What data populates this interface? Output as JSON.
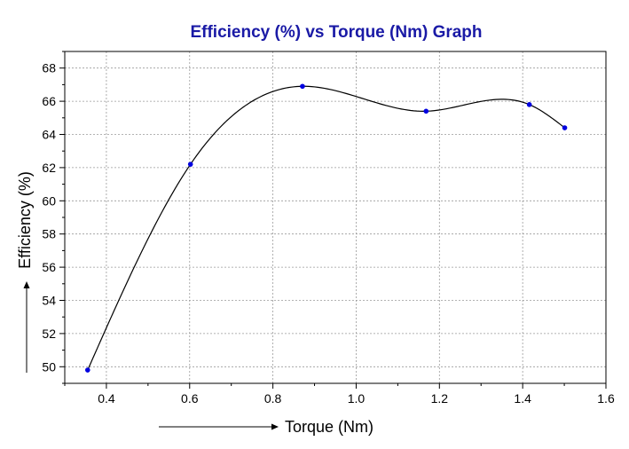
{
  "chart_data": {
    "type": "line",
    "title": "Efficiency (%) vs Torque (Nm) Graph",
    "xlabel": "Torque (Nm)",
    "ylabel": "Efficiency (%)",
    "xlim": [
      0.3,
      1.6
    ],
    "ylim": [
      49,
      69
    ],
    "xticks": [
      0.4,
      0.6,
      0.8,
      1.0,
      1.2,
      1.4,
      1.6
    ],
    "xtick_labels": [
      "0.4",
      "0.6",
      "0.8",
      "1.0",
      "1.2",
      "1.4",
      "1.6"
    ],
    "yticks": [
      50,
      52,
      54,
      56,
      58,
      60,
      62,
      64,
      66,
      68
    ],
    "ytick_labels": [
      "50",
      "52",
      "54",
      "56",
      "58",
      "60",
      "62",
      "64",
      "66",
      "68"
    ],
    "grid": true,
    "smooth": true,
    "series": [
      {
        "x": [
          0.355,
          0.602,
          0.871,
          1.168,
          1.416,
          1.501
        ],
        "y": [
          49.8,
          62.2,
          66.9,
          65.4,
          65.8,
          64.4
        ]
      }
    ],
    "colors": {
      "title": "#1a1aa6",
      "point": "#0000e0",
      "line": "#000000",
      "grid": "#9a9a9a"
    }
  }
}
